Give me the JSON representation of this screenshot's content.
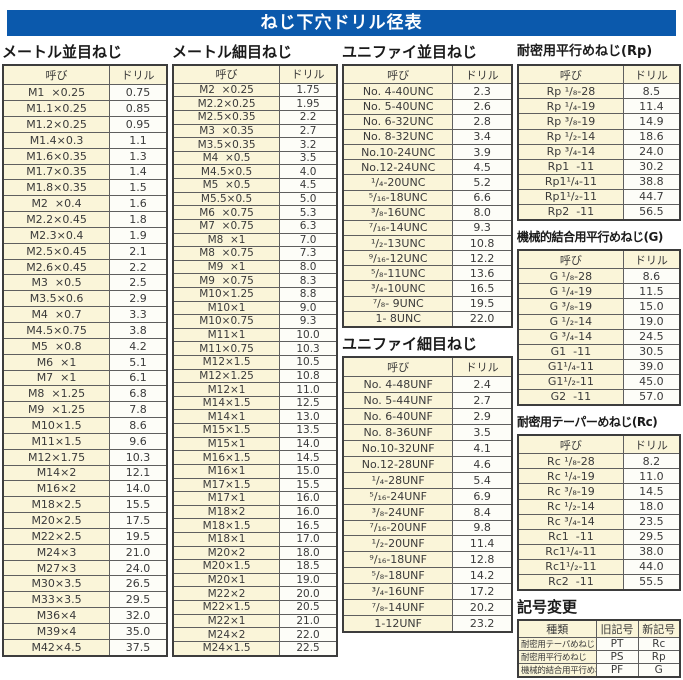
{
  "page_title": "ねじ下穴ドリル径表",
  "colors": {
    "banner_bg": "#0b59ac",
    "banner_text": "#ffffff",
    "cell_cream": "#faf5d9",
    "cell_white": "#fdfdf8",
    "border_outer": "#3d3d3d",
    "border_inner": "#5f5f5f",
    "text": "#3a3a3a"
  },
  "tables": {
    "metric_coarse": {
      "title": "メートル並目ねじ",
      "head": [
        "呼び",
        "ドリル"
      ],
      "rows": [
        [
          "M1  ×0.25",
          "0.75"
        ],
        [
          "M1.1×0.25",
          "0.85"
        ],
        [
          "M1.2×0.25",
          "0.95"
        ],
        [
          "M1.4×0.3",
          "1.1"
        ],
        [
          "M1.6×0.35",
          "1.3"
        ],
        [
          "M1.7×0.35",
          "1.4"
        ],
        [
          "M1.8×0.35",
          "1.5"
        ],
        [
          "M2  ×0.4",
          "1.6"
        ],
        [
          "M2.2×0.45",
          "1.8"
        ],
        [
          "M2.3×0.4",
          "1.9"
        ],
        [
          "M2.5×0.45",
          "2.1"
        ],
        [
          "M2.6×0.45",
          "2.2"
        ],
        [
          "M3  ×0.5",
          "2.5"
        ],
        [
          "M3.5×0.6",
          "2.9"
        ],
        [
          "M4  ×0.7",
          "3.3"
        ],
        [
          "M4.5×0.75",
          "3.8"
        ],
        [
          "M5  ×0.8",
          "4.2"
        ],
        [
          "M6  ×1",
          "5.1"
        ],
        [
          "M7  ×1",
          "6.1"
        ],
        [
          "M8  ×1.25",
          "6.8"
        ],
        [
          "M9  ×1.25",
          "7.8"
        ],
        [
          "M10×1.5",
          "8.6"
        ],
        [
          "M11×1.5",
          "9.6"
        ],
        [
          "M12×1.75",
          "10.3"
        ],
        [
          "M14×2",
          "12.1"
        ],
        [
          "M16×2",
          "14.0"
        ],
        [
          "M18×2.5",
          "15.5"
        ],
        [
          "M20×2.5",
          "17.5"
        ],
        [
          "M22×2.5",
          "19.5"
        ],
        [
          "M24×3",
          "21.0"
        ],
        [
          "M27×3",
          "24.0"
        ],
        [
          "M30×3.5",
          "26.5"
        ],
        [
          "M33×3.5",
          "29.5"
        ],
        [
          "M36×4",
          "32.0"
        ],
        [
          "M39×4",
          "35.0"
        ],
        [
          "M42×4.5",
          "37.5"
        ]
      ]
    },
    "metric_fine": {
      "title": "メートル細目ねじ",
      "head": [
        "呼び",
        "ドリル"
      ],
      "rows": [
        [
          "M2  ×0.25",
          "1.75"
        ],
        [
          "M2.2×0.25",
          "1.95"
        ],
        [
          "M2.5×0.35",
          "2.2"
        ],
        [
          "M3  ×0.35",
          "2.7"
        ],
        [
          "M3.5×0.35",
          "3.2"
        ],
        [
          "M4  ×0.5",
          "3.5"
        ],
        [
          "M4.5×0.5",
          "4.0"
        ],
        [
          "M5  ×0.5",
          "4.5"
        ],
        [
          "M5.5×0.5",
          "5.0"
        ],
        [
          "M6  ×0.75",
          "5.3"
        ],
        [
          "M7  ×0.75",
          "6.3"
        ],
        [
          "M8  ×1",
          "7.0"
        ],
        [
          "M8  ×0.75",
          "7.3"
        ],
        [
          "M9  ×1",
          "8.0"
        ],
        [
          "M9  ×0.75",
          "8.3"
        ],
        [
          "M10×1.25",
          "8.8"
        ],
        [
          "M10×1",
          "9.0"
        ],
        [
          "M10×0.75",
          "9.3"
        ],
        [
          "M11×1",
          "10.0"
        ],
        [
          "M11×0.75",
          "10.3"
        ],
        [
          "M12×1.5",
          "10.5"
        ],
        [
          "M12×1.25",
          "10.8"
        ],
        [
          "M12×1",
          "11.0"
        ],
        [
          "M14×1.5",
          "12.5"
        ],
        [
          "M14×1",
          "13.0"
        ],
        [
          "M15×1.5",
          "13.5"
        ],
        [
          "M15×1",
          "14.0"
        ],
        [
          "M16×1.5",
          "14.5"
        ],
        [
          "M16×1",
          "15.0"
        ],
        [
          "M17×1.5",
          "15.5"
        ],
        [
          "M17×1",
          "16.0"
        ],
        [
          "M18×2",
          "16.0"
        ],
        [
          "M18×1.5",
          "16.5"
        ],
        [
          "M18×1",
          "17.0"
        ],
        [
          "M20×2",
          "18.0"
        ],
        [
          "M20×1.5",
          "18.5"
        ],
        [
          "M20×1",
          "19.0"
        ],
        [
          "M22×2",
          "20.0"
        ],
        [
          "M22×1.5",
          "20.5"
        ],
        [
          "M22×1",
          "21.0"
        ],
        [
          "M24×2",
          "22.0"
        ],
        [
          "M24×1.5",
          "22.5"
        ]
      ]
    },
    "unified_coarse": {
      "title": "ユニファイ並目ねじ",
      "head": [
        "呼び",
        "ドリル"
      ],
      "rows": [
        [
          "No. 4-40UNC",
          "2.3"
        ],
        [
          "No. 5-40UNC",
          "2.6"
        ],
        [
          "No. 6-32UNC",
          "2.8"
        ],
        [
          "No. 8-32UNC",
          "3.4"
        ],
        [
          "No.10-24UNC",
          "3.9"
        ],
        [
          "No.12-24UNC",
          "4.5"
        ],
        [
          "¹/₄-20UNC",
          "5.2"
        ],
        [
          "⁵/₁₆-18UNC",
          "6.6"
        ],
        [
          "³/₈-16UNC",
          "8.0"
        ],
        [
          "⁷/₁₆-14UNC",
          "9.3"
        ],
        [
          "¹/₂-13UNC",
          "10.8"
        ],
        [
          "⁹/₁₆-12UNC",
          "12.2"
        ],
        [
          "⁵/₈-11UNC",
          "13.6"
        ],
        [
          "³/₄-10UNC",
          "16.5"
        ],
        [
          "⁷/₈- 9UNC",
          "19.5"
        ],
        [
          "1- 8UNC",
          "22.0"
        ]
      ]
    },
    "unified_fine": {
      "title": "ユニファイ細目ねじ",
      "head": [
        "呼び",
        "ドリル"
      ],
      "rows": [
        [
          "No. 4-48UNF",
          "2.4"
        ],
        [
          "No. 5-44UNF",
          "2.7"
        ],
        [
          "No. 6-40UNF",
          "2.9"
        ],
        [
          "No. 8-36UNF",
          "3.5"
        ],
        [
          "No.10-32UNF",
          "4.1"
        ],
        [
          "No.12-28UNF",
          "4.6"
        ],
        [
          "¹/₄-28UNF",
          "5.4"
        ],
        [
          "⁵/₁₆-24UNF",
          "6.9"
        ],
        [
          "³/₈-24UNF",
          "8.4"
        ],
        [
          "⁷/₁₆-20UNF",
          "9.8"
        ],
        [
          "¹/₂-20UNF",
          "11.4"
        ],
        [
          "⁹/₁₆-18UNF",
          "12.8"
        ],
        [
          "⁵/₈-18UNF",
          "14.2"
        ],
        [
          "³/₄-16UNF",
          "17.2"
        ],
        [
          "⁷/₈-14UNF",
          "20.2"
        ],
        [
          "1-12UNF",
          "23.2"
        ]
      ]
    },
    "rp": {
      "title": "耐密用平行めねじ(Rp)",
      "head": [
        "呼び",
        "ドリル"
      ],
      "rows": [
        [
          "Rp ¹/₈-28",
          "8.5"
        ],
        [
          "Rp ¹/₄-19",
          "11.4"
        ],
        [
          "Rp ³/₈-19",
          "14.9"
        ],
        [
          "Rp ¹/₂-14",
          "18.6"
        ],
        [
          "Rp ³/₄-14",
          "24.0"
        ],
        [
          "Rp1  -11",
          "30.2"
        ],
        [
          "Rp1¹/₄-11",
          "38.8"
        ],
        [
          "Rp1¹/₂-11",
          "44.7"
        ],
        [
          "Rp2  -11",
          "56.5"
        ]
      ]
    },
    "g": {
      "title": "機械的結合用平行めねじ(G)",
      "head": [
        "呼び",
        "ドリル"
      ],
      "rows": [
        [
          "G ¹/₈-28",
          "8.6"
        ],
        [
          "G ¹/₄-19",
          "11.5"
        ],
        [
          "G ³/₈-19",
          "15.0"
        ],
        [
          "G ¹/₂-14",
          "19.0"
        ],
        [
          "G ³/₄-14",
          "24.5"
        ],
        [
          "G1  -11",
          "30.5"
        ],
        [
          "G1¹/₄-11",
          "39.0"
        ],
        [
          "G1¹/₂-11",
          "45.0"
        ],
        [
          "G2  -11",
          "57.0"
        ]
      ]
    },
    "rc": {
      "title": "耐密用テーパーめねじ(Rc)",
      "head": [
        "呼び",
        "ドリル"
      ],
      "rows": [
        [
          "Rc ¹/₈-28",
          "8.2"
        ],
        [
          "Rc ¹/₄-19",
          "11.0"
        ],
        [
          "Rc ³/₈-19",
          "14.5"
        ],
        [
          "Rc ¹/₂-14",
          "18.0"
        ],
        [
          "Rc ³/₄-14",
          "23.5"
        ],
        [
          "Rc1  -11",
          "29.5"
        ],
        [
          "Rc1¹/₄-11",
          "38.0"
        ],
        [
          "Rc1¹/₂-11",
          "44.0"
        ],
        [
          "Rc2  -11",
          "55.5"
        ]
      ]
    },
    "symbol_change": {
      "title": "記号変更",
      "head": [
        "種類",
        "旧記号",
        "新記号"
      ],
      "rows": [
        [
          "耐密用テーパめねじ",
          "PT",
          "Rc"
        ],
        [
          "耐密用平行めねじ",
          "PS",
          "Rp"
        ],
        [
          "機械的結合用平行めねじ",
          "PF",
          "G"
        ]
      ]
    }
  }
}
